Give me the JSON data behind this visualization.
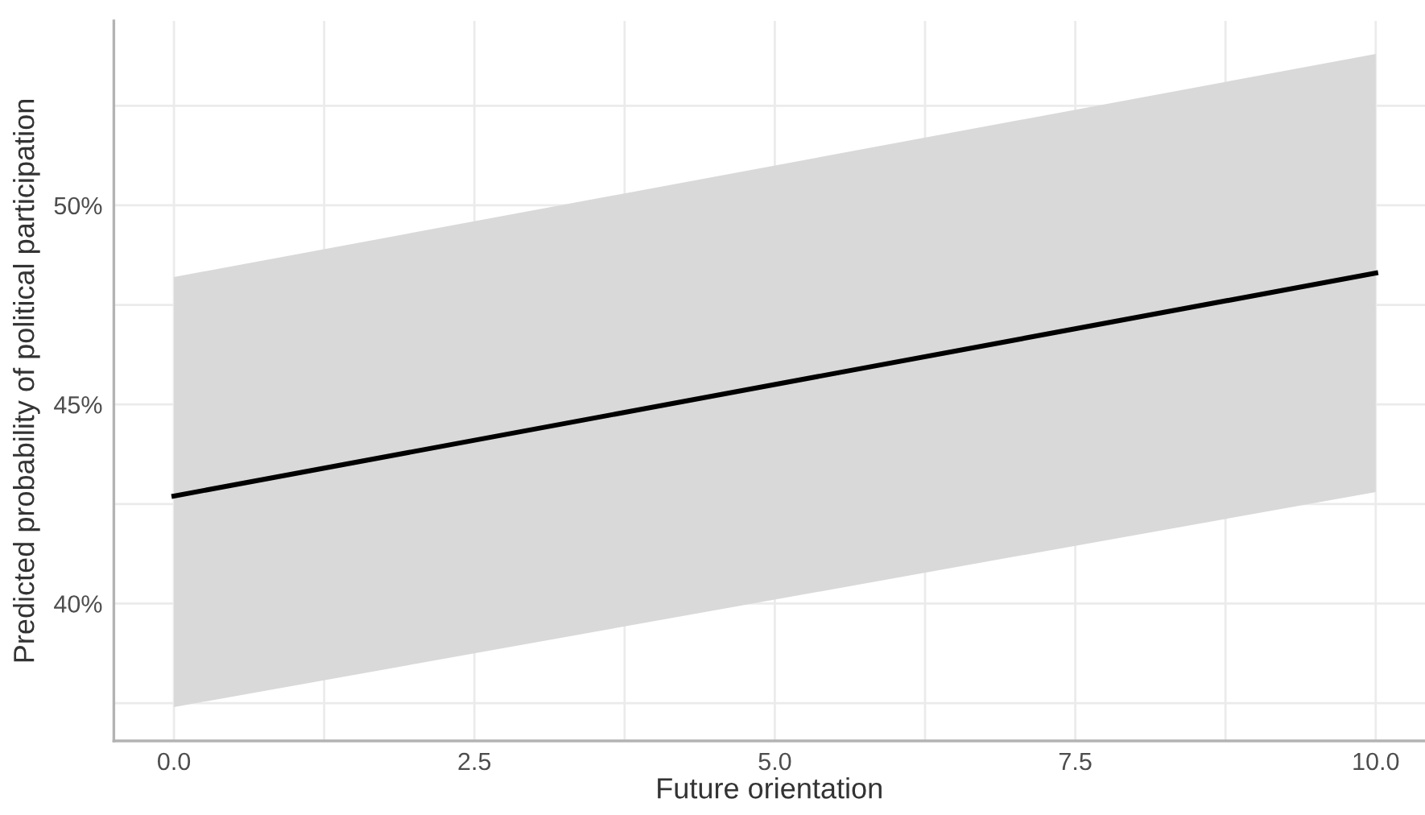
{
  "chart_data": {
    "type": "line",
    "xlabel": "Future orientation",
    "ylabel": "Predicted probability of political participation",
    "series": [
      {
        "color": "#000000",
        "x": [
          0,
          10
        ],
        "values": [
          42.7,
          48.3
        ],
        "lower": [
          37.4,
          42.8
        ],
        "upper": [
          48.2,
          53.8
        ]
      }
    ],
    "xlim": [
      -0.5,
      10.41
    ],
    "ylim": [
      36.55,
      54.63
    ],
    "xticks": [
      {
        "value": 0,
        "label": "0.0"
      },
      {
        "value": 1.25,
        "label": null
      },
      {
        "value": 2.5,
        "label": "2.5"
      },
      {
        "value": 3.75,
        "label": null
      },
      {
        "value": 5,
        "label": "5.0"
      },
      {
        "value": 6.25,
        "label": null
      },
      {
        "value": 7.5,
        "label": "7.5"
      },
      {
        "value": 8.75,
        "label": null
      },
      {
        "value": 10,
        "label": "10.0"
      }
    ],
    "yticks": [
      {
        "value": 37.5,
        "label": null
      },
      {
        "value": 40,
        "label": "40%"
      },
      {
        "value": 42.5,
        "label": null
      },
      {
        "value": 45,
        "label": "45%"
      },
      {
        "value": 47.5,
        "label": null
      },
      {
        "value": 50,
        "label": "50%"
      },
      {
        "value": 52.5,
        "label": null
      }
    ],
    "grid": true,
    "marker": "none",
    "line_style": "solid"
  }
}
